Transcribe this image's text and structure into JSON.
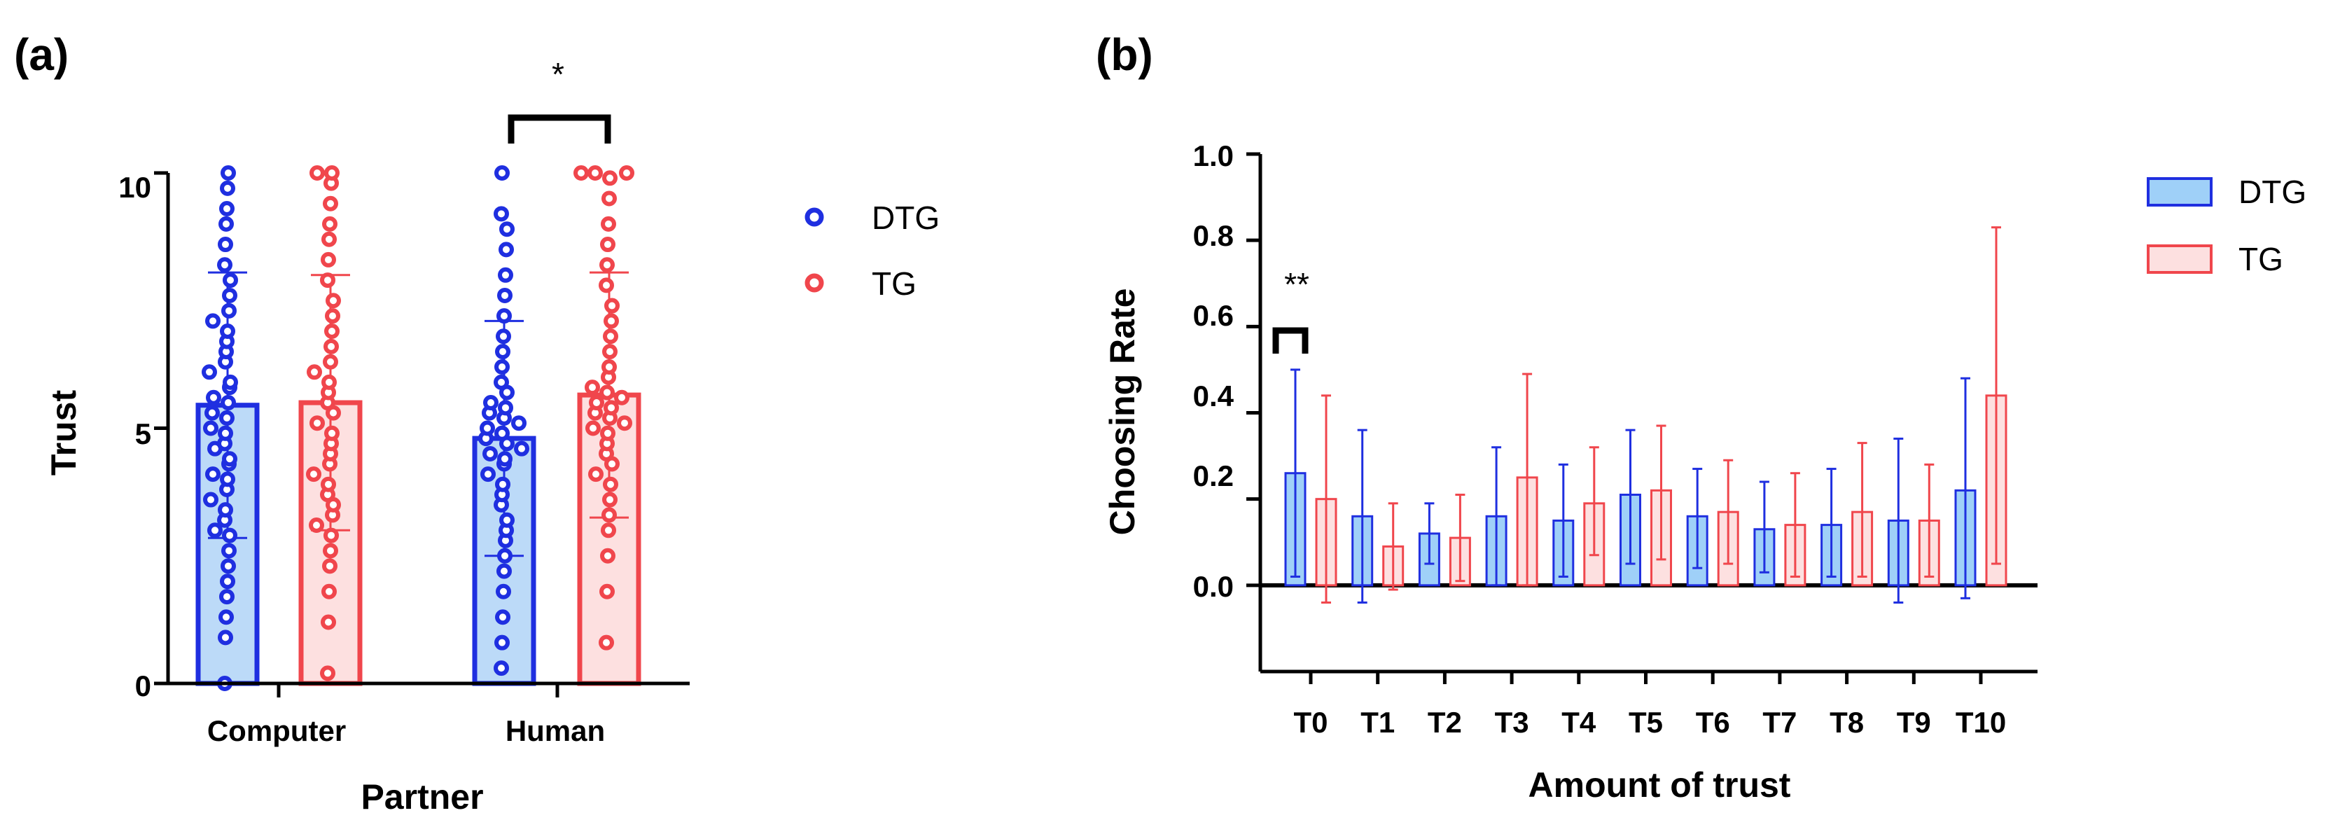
{
  "chart_data": [
    {
      "panel_label": "(a)",
      "type": "bar",
      "title": "",
      "xlabel": "Partner",
      "ylabel": "Trust",
      "ylim": [
        0,
        10
      ],
      "yticks": [
        {
          "value": 0,
          "label": "0"
        },
        {
          "value": 5,
          "label": "5"
        },
        {
          "value": 10,
          "label": "10"
        }
      ],
      "categories": [
        "Computer",
        "Human"
      ],
      "legend": [
        {
          "name": "DTG",
          "color": "#1f2fe0",
          "marker": "dot"
        },
        {
          "name": "TG",
          "color": "#f0464c",
          "marker": "dot"
        }
      ],
      "series": [
        {
          "name": "DTG",
          "color": "#1f2fe0",
          "fill": "#bcdaf8",
          "values": [
            5.45,
            4.8
          ],
          "sd": [
            2.6,
            2.3
          ],
          "points": [
            [
              0.0,
              0.9,
              1.3,
              1.7,
              2.0,
              2.3,
              2.6,
              2.9,
              3.0,
              3.2,
              3.4,
              3.6,
              3.8,
              4.0,
              4.1,
              4.3,
              4.4,
              4.6,
              4.7,
              4.9,
              5.0,
              5.2,
              5.3,
              5.5,
              5.6,
              5.8,
              5.9,
              6.1,
              6.3,
              6.5,
              6.7,
              6.9,
              7.1,
              7.3,
              7.6,
              7.9,
              8.2,
              8.6,
              9.0,
              9.3,
              9.7,
              10.0
            ],
            [
              0.3,
              0.8,
              1.3,
              1.8,
              2.2,
              2.5,
              2.8,
              3.0,
              3.2,
              3.5,
              3.7,
              3.9,
              4.1,
              4.3,
              4.4,
              4.5,
              4.6,
              4.7,
              4.8,
              4.9,
              5.0,
              5.1,
              5.2,
              5.3,
              5.4,
              5.5,
              5.7,
              5.9,
              6.2,
              6.5,
              6.8,
              7.2,
              7.6,
              8.0,
              8.5,
              8.9,
              9.2,
              10.0
            ]
          ]
        },
        {
          "name": "TG",
          "color": "#f0464c",
          "fill": "#fde0e0",
          "values": [
            5.5,
            5.65
          ],
          "sd": [
            2.5,
            2.4
          ],
          "points": [
            [
              0.2,
              1.2,
              1.8,
              2.3,
              2.6,
              2.9,
              3.1,
              3.3,
              3.5,
              3.7,
              3.9,
              4.1,
              4.3,
              4.5,
              4.7,
              4.9,
              5.1,
              5.3,
              5.5,
              5.7,
              5.9,
              6.1,
              6.3,
              6.6,
              6.9,
              7.2,
              7.5,
              7.9,
              8.3,
              8.7,
              9.0,
              9.4,
              9.8,
              10.0,
              10.0
            ],
            [
              0.8,
              1.8,
              2.5,
              3.0,
              3.3,
              3.6,
              3.9,
              4.1,
              4.3,
              4.5,
              4.7,
              4.9,
              5.0,
              5.1,
              5.2,
              5.3,
              5.4,
              5.5,
              5.6,
              5.7,
              5.8,
              6.0,
              6.2,
              6.5,
              6.8,
              7.1,
              7.4,
              7.8,
              8.2,
              8.6,
              9.0,
              9.5,
              9.9,
              10.0,
              10.0,
              10.0
            ]
          ]
        }
      ],
      "annotations": [
        {
          "between": [
            "DTG Human",
            "TG Human"
          ],
          "label": "*"
        }
      ]
    },
    {
      "panel_label": "(b)",
      "type": "bar",
      "title": "",
      "xlabel": "Amount of trust",
      "ylabel": "Choosing Rate",
      "ylim": [
        -0.2,
        1.0
      ],
      "yticks": [
        {
          "value": 0.0,
          "label": "0.0"
        },
        {
          "value": 0.2,
          "label": "0.2"
        },
        {
          "value": 0.4,
          "label": "0.4"
        },
        {
          "value": 0.6,
          "label": "0.6"
        },
        {
          "value": 0.8,
          "label": "0.8"
        },
        {
          "value": 1.0,
          "label": "1.0"
        }
      ],
      "categories": [
        "T0",
        "T1",
        "T2",
        "T3",
        "T4",
        "T5",
        "T6",
        "T7",
        "T8",
        "T9",
        "T10"
      ],
      "legend": [
        {
          "name": "DTG",
          "color": "#1f2fe0",
          "fill": "#9fd0f8"
        },
        {
          "name": "TG",
          "color": "#f0464c",
          "fill": "#fde0e0"
        }
      ],
      "series": [
        {
          "name": "DTG",
          "color": "#1f2fe0",
          "fill": "#9fd0f8",
          "values": [
            0.26,
            0.16,
            0.12,
            0.16,
            0.15,
            0.21,
            0.16,
            0.13,
            0.14,
            0.15,
            0.22
          ],
          "err_low": [
            0.02,
            -0.04,
            0.05,
            0.0,
            0.02,
            0.05,
            0.04,
            0.03,
            0.02,
            -0.04,
            -0.03
          ],
          "err_high": [
            0.5,
            0.36,
            0.19,
            0.32,
            0.28,
            0.36,
            0.27,
            0.24,
            0.27,
            0.34,
            0.48
          ]
        },
        {
          "name": "TG",
          "color": "#f0464c",
          "fill": "#fde0e0",
          "values": [
            0.2,
            0.09,
            0.11,
            0.25,
            0.19,
            0.22,
            0.17,
            0.14,
            0.17,
            0.15,
            0.44
          ],
          "err_low": [
            -0.04,
            -0.01,
            0.01,
            0.0,
            0.07,
            0.06,
            0.05,
            0.02,
            0.02,
            0.02,
            0.05
          ],
          "err_high": [
            0.44,
            0.19,
            0.21,
            0.49,
            0.32,
            0.37,
            0.29,
            0.26,
            0.33,
            0.28,
            0.83
          ]
        }
      ],
      "annotations": [
        {
          "between": [
            "DTG T0",
            "TG T0"
          ],
          "label": "**"
        }
      ]
    }
  ]
}
